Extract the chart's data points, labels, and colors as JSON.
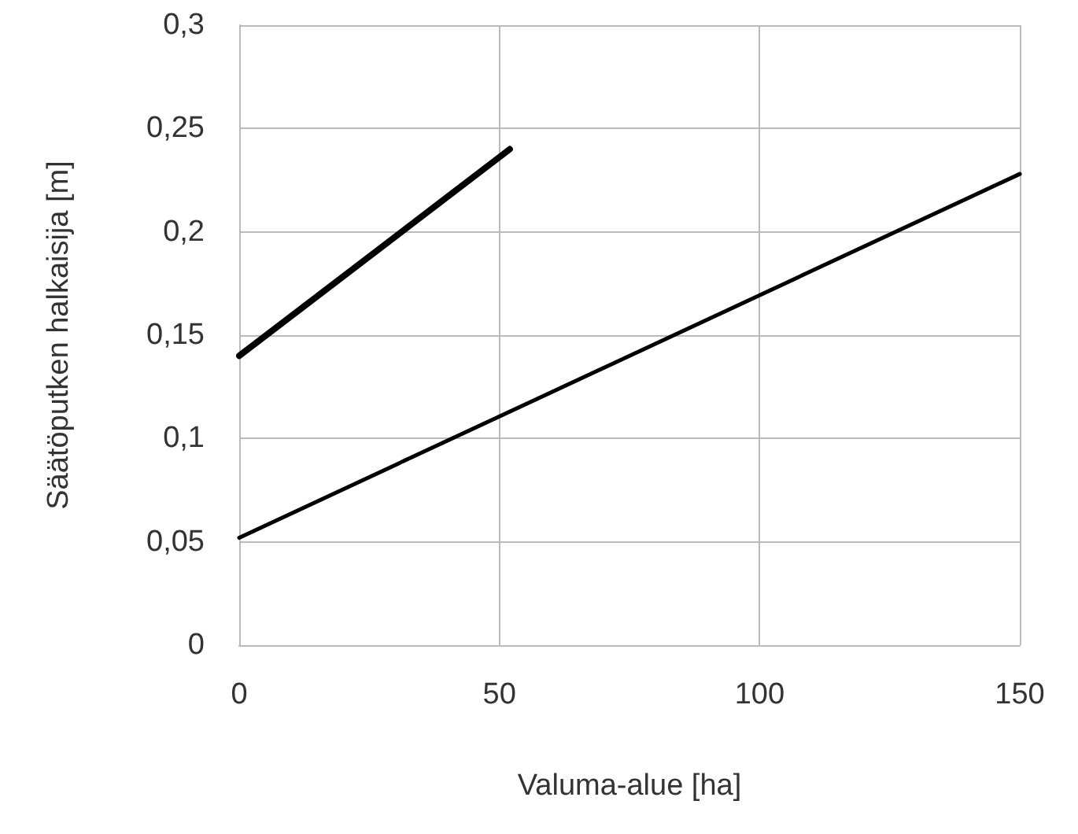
{
  "chart_data": {
    "type": "line",
    "xlabel": "Valuma-alue [ha]",
    "ylabel": "Säätöputken halkaisija [m]",
    "series": [
      {
        "color": "#000000",
        "x": [
          0,
          52
        ],
        "values": [
          0.14,
          0.24
        ]
      },
      {
        "color": "#000000",
        "x": [
          0,
          150
        ],
        "values": [
          0.052,
          0.228
        ]
      }
    ],
    "xlim": [
      0,
      150
    ],
    "xticks": [
      0,
      50,
      100,
      150
    ],
    "ylim": [
      0,
      0.3
    ],
    "yticks": [
      0,
      {
        "value": 0.05,
        "label": "0,05"
      },
      {
        "value": 0.1,
        "label": "0,1"
      },
      {
        "value": 0.15,
        "label": "0,15"
      },
      {
        "value": 0.2,
        "label": "0,2"
      },
      {
        "value": 0.25,
        "label": "0,25"
      },
      {
        "value": 0.3,
        "label": "0,3"
      }
    ],
    "grid": true,
    "marker": "none",
    "line_style": "solid"
  }
}
